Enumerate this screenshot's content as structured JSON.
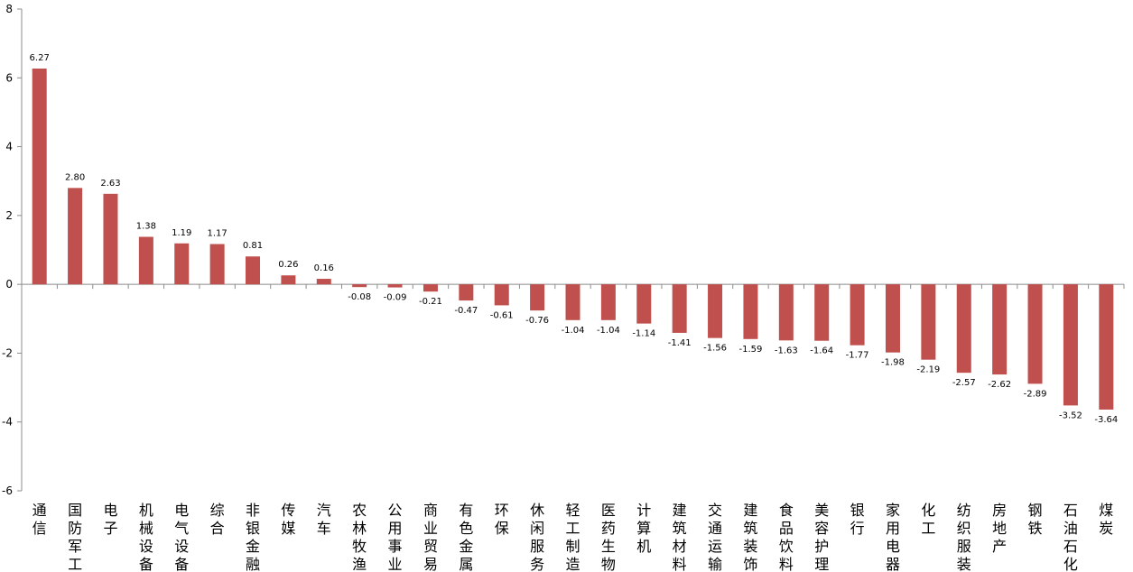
{
  "chart_data": {
    "type": "bar",
    "categories": [
      "通信",
      "国防军工",
      "电子",
      "机械设备",
      "电气设备",
      "综合",
      "非银金融",
      "传媒",
      "汽车",
      "农林牧渔",
      "公用事业",
      "商业贸易",
      "有色金属",
      "环保",
      "休闲服务",
      "轻工制造",
      "医药生物",
      "计算机",
      "建筑材料",
      "交通运输",
      "建筑装饰",
      "食品饮料",
      "美容护理",
      "银行",
      "家用电器",
      "化工",
      "纺织服装",
      "房地产",
      "钢铁",
      "石油石化",
      "煤炭"
    ],
    "values": [
      6.27,
      2.8,
      2.63,
      1.38,
      1.19,
      1.17,
      0.81,
      0.26,
      0.16,
      -0.08,
      -0.09,
      -0.21,
      -0.47,
      -0.61,
      -0.76,
      -1.04,
      -1.04,
      -1.14,
      -1.41,
      -1.56,
      -1.59,
      -1.63,
      -1.64,
      -1.77,
      -1.98,
      -2.19,
      -2.57,
      -2.62,
      -2.89,
      -3.52,
      -3.64
    ],
    "data_labels": [
      "6.27",
      "2.80",
      "2.63",
      "1.38",
      "1.19",
      "1.17",
      "0.81",
      "0.26",
      "0.16",
      "-0.08",
      "-0.09",
      "-0.21",
      "-0.47",
      "-0.61",
      "-0.76",
      "-1.04",
      "-1.04",
      "-1.14",
      "-1.41",
      "-1.56",
      "-1.59",
      "-1.63",
      "-1.64",
      "-1.77",
      "-1.98",
      "-2.19",
      "-2.57",
      "-2.62",
      "-2.89",
      "-3.52",
      "-3.64"
    ],
    "ylim": [
      -6,
      8
    ],
    "yticks": [
      "-6",
      "-4",
      "-2",
      "0",
      "2",
      "4",
      "6",
      "8"
    ],
    "grid": false,
    "bar_color": "#c0504d",
    "axis_color": "#8c8c8c",
    "title": "",
    "xlabel": "",
    "ylabel": ""
  }
}
